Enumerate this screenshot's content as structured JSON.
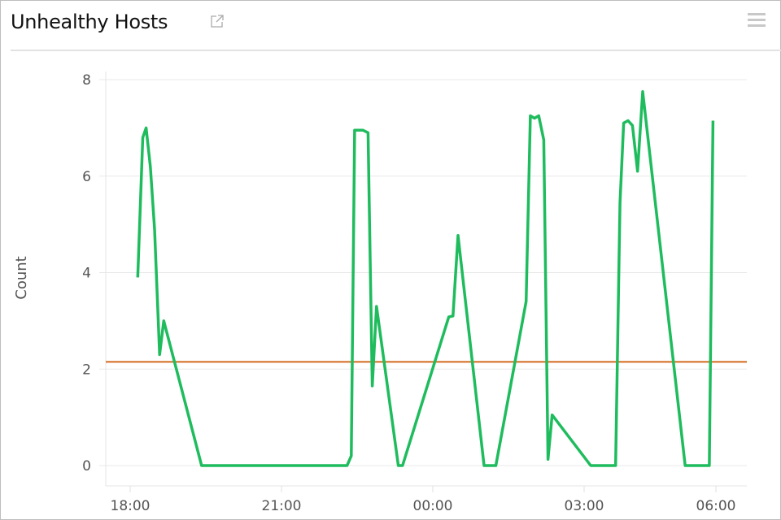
{
  "panel": {
    "title": "Unhealthy Hosts",
    "icons": {
      "open": "external-link-icon",
      "menu": "hamburger-menu-icon"
    }
  },
  "chart_data": {
    "type": "line",
    "title": "Unhealthy Hosts",
    "xlabel": "",
    "ylabel": "Count",
    "ylim": [
      0,
      8
    ],
    "yticks": [
      0,
      2,
      4,
      6,
      8
    ],
    "xticks": [
      "18:00",
      "21:00",
      "00:00",
      "03:00",
      "06:00"
    ],
    "grid": true,
    "series": [
      {
        "color": "#1fbc5e",
        "points": [
          [
            "18:09",
            3.9
          ],
          [
            "18:15",
            6.8
          ],
          [
            "18:19",
            7.0
          ],
          [
            "18:24",
            6.2
          ],
          [
            "18:29",
            4.9
          ],
          [
            "18:35",
            2.3
          ],
          [
            "18:40",
            3.0
          ],
          [
            "19:25",
            0
          ],
          [
            "22:18",
            0
          ],
          [
            "22:23",
            0.2
          ],
          [
            "22:27",
            6.95
          ],
          [
            "22:37",
            6.95
          ],
          [
            "22:43",
            6.9
          ],
          [
            "22:48",
            1.65
          ],
          [
            "22:53",
            3.3
          ],
          [
            "23:19",
            0
          ],
          [
            "23:24",
            0
          ],
          [
            "00:19",
            3.08
          ],
          [
            "00:24",
            3.1
          ],
          [
            "00:30",
            4.77
          ],
          [
            "01:01",
            0
          ],
          [
            "01:15",
            0
          ],
          [
            "01:51",
            3.4
          ],
          [
            "01:56",
            7.25
          ],
          [
            "02:01",
            7.2
          ],
          [
            "02:06",
            7.25
          ],
          [
            "02:12",
            6.75
          ],
          [
            "02:17",
            0.13
          ],
          [
            "02:22",
            1.05
          ],
          [
            "03:09",
            0
          ],
          [
            "03:43",
            0
          ],
          [
            "03:49",
            5.45
          ],
          [
            "03:54",
            7.1
          ],
          [
            "04:00",
            7.15
          ],
          [
            "04:06",
            7.05
          ],
          [
            "04:13",
            6.1
          ],
          [
            "04:20",
            7.75
          ],
          [
            "05:18",
            0
          ],
          [
            "05:51",
            0
          ],
          [
            "05:56",
            7.15
          ]
        ]
      }
    ],
    "threshold": {
      "value": 2.15,
      "color": "#d2691e"
    }
  }
}
